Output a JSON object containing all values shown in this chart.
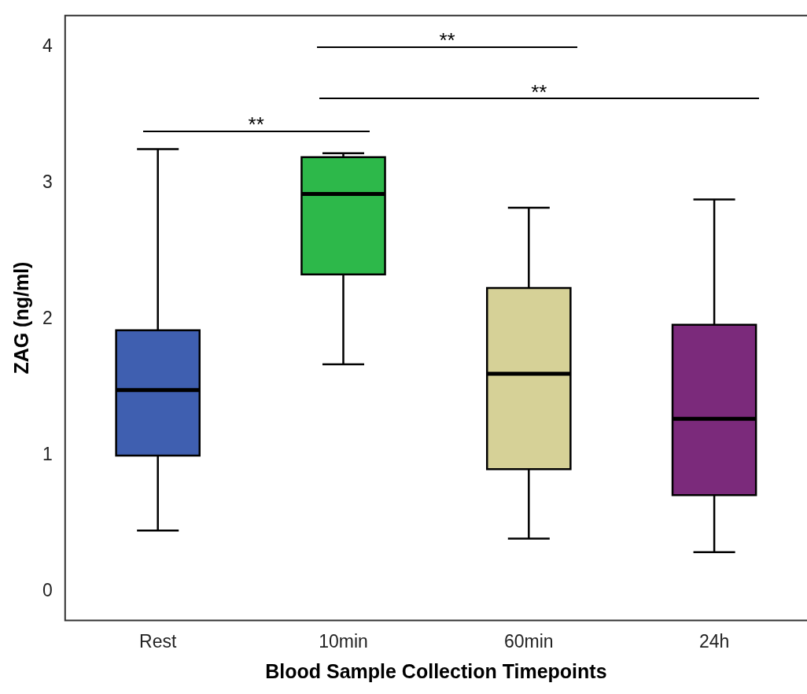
{
  "chart_data": {
    "type": "box",
    "xlabel": "Blood Sample Collection Timepoints",
    "ylabel": "ZAG (ng/ml)",
    "categories": [
      "Rest",
      "10min",
      "60min",
      "24h"
    ],
    "colors": [
      "#3f5fb0",
      "#2db84a",
      "#d6d197",
      "#7b2a7b"
    ],
    "boxes": [
      {
        "low": 0.45,
        "q1": 1.0,
        "median": 1.48,
        "q3": 1.92,
        "high": 3.25
      },
      {
        "low": 1.67,
        "q1": 2.33,
        "median": 2.92,
        "q3": 3.19,
        "high": 3.22
      },
      {
        "low": 0.39,
        "q1": 0.9,
        "median": 1.6,
        "q3": 2.23,
        "high": 2.82
      },
      {
        "low": 0.29,
        "q1": 0.71,
        "median": 1.27,
        "q3": 1.96,
        "high": 2.88
      }
    ],
    "ylim": [
      -0.21,
      4.23
    ],
    "yticks": [
      0,
      1,
      2,
      3,
      4
    ],
    "grid": false,
    "legend": false,
    "annotations": [
      "**",
      "**",
      "**"
    ]
  }
}
